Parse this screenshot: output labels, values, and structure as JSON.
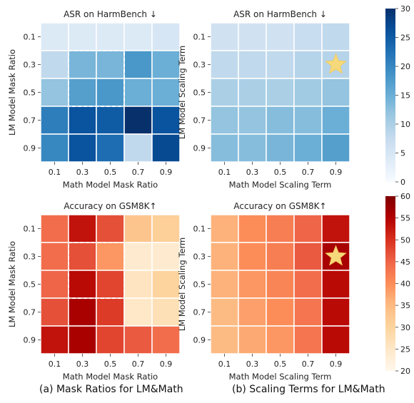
{
  "captions": {
    "left": "(a) Mask Ratios for LM&Math",
    "right": "(b) Scaling Terms for LM&Math"
  },
  "chart_data": [
    {
      "type": "heatmap",
      "title": "ASR on HarmBench ↓",
      "xlabel": "Math Model Mask Ratio",
      "ylabel": "LM Model Mask Ratio",
      "x_categories": [
        "0.1",
        "0.3",
        "0.5",
        "0.7",
        "0.9"
      ],
      "y_categories": [
        "0.1",
        "0.3",
        "0.5",
        "0.7",
        "0.9"
      ],
      "colormap": "blues",
      "vmin": 0,
      "vmax": 30,
      "values": [
        [
          4,
          4,
          4,
          4,
          5
        ],
        [
          8,
          14,
          14,
          18,
          15
        ],
        [
          12,
          17,
          18,
          15,
          15
        ],
        [
          21,
          26,
          25,
          30,
          26
        ],
        [
          20,
          26,
          23,
          8,
          27
        ]
      ],
      "highlight_box": {
        "rows": [
          1,
          2
        ],
        "cols": [
          1,
          2
        ]
      },
      "star": null
    },
    {
      "type": "heatmap",
      "title": "ASR on HarmBench ↓",
      "xlabel": "Math Model Scaling Term",
      "ylabel": "LM Model Scaling Term",
      "x_categories": [
        "0.1",
        "0.3",
        "0.5",
        "0.7",
        "0.9"
      ],
      "y_categories": [
        "0.1",
        "0.3",
        "0.5",
        "0.7",
        "0.9"
      ],
      "colormap": "blues",
      "vmin": 0,
      "vmax": 30,
      "colorbar_ticks": [
        0,
        5,
        10,
        15,
        20,
        25,
        30
      ],
      "values": [
        [
          6,
          6,
          6,
          7,
          8
        ],
        [
          8,
          8,
          8,
          9,
          9
        ],
        [
          10,
          10,
          10,
          11,
          12
        ],
        [
          12,
          12,
          13,
          13,
          15
        ],
        [
          13,
          13,
          14,
          15,
          17
        ]
      ],
      "highlight_box": null,
      "star": {
        "row": 1,
        "col": 4
      }
    },
    {
      "type": "heatmap",
      "title": "Accuracy on GSM8K↑",
      "xlabel": "Math Model Mask Ratio",
      "ylabel": "LM Model Mask Ratio",
      "x_categories": [
        "0.1",
        "0.3",
        "0.5",
        "0.7",
        "0.9"
      ],
      "y_categories": [
        "0.1",
        "0.3",
        "0.5",
        "0.7",
        "0.9"
      ],
      "colormap": "orrd",
      "vmin": 20,
      "vmax": 60,
      "values": [
        [
          44,
          53,
          47,
          33,
          31
        ],
        [
          44,
          47,
          39,
          24,
          24
        ],
        [
          45,
          54,
          48,
          26,
          30
        ],
        [
          47,
          56,
          49,
          25,
          27
        ],
        [
          53,
          56,
          48,
          46,
          44
        ]
      ],
      "highlight_box": {
        "rows": [
          1,
          2
        ],
        "cols": [
          1,
          2
        ]
      },
      "star": null
    },
    {
      "type": "heatmap",
      "title": "Accuracy on GSM8K↑",
      "xlabel": "Math Model Scaling Term",
      "ylabel": "LM Model Scaling Term",
      "x_categories": [
        "0.1",
        "0.3",
        "0.5",
        "0.7",
        "0.9"
      ],
      "y_categories": [
        "0.1",
        "0.3",
        "0.5",
        "0.7",
        "0.9"
      ],
      "colormap": "orrd",
      "vmin": 20,
      "vmax": 60,
      "colorbar_ticks": [
        20,
        25,
        30,
        35,
        40,
        45,
        50,
        55,
        60
      ],
      "values": [
        [
          36,
          40,
          42,
          45,
          53
        ],
        [
          36,
          40,
          42,
          46,
          56
        ],
        [
          36,
          39,
          41,
          44,
          54
        ],
        [
          35,
          38,
          40,
          43,
          54
        ],
        [
          35,
          37,
          39,
          43,
          54
        ]
      ],
      "highlight_box": null,
      "star": {
        "row": 1,
        "col": 4
      }
    }
  ]
}
